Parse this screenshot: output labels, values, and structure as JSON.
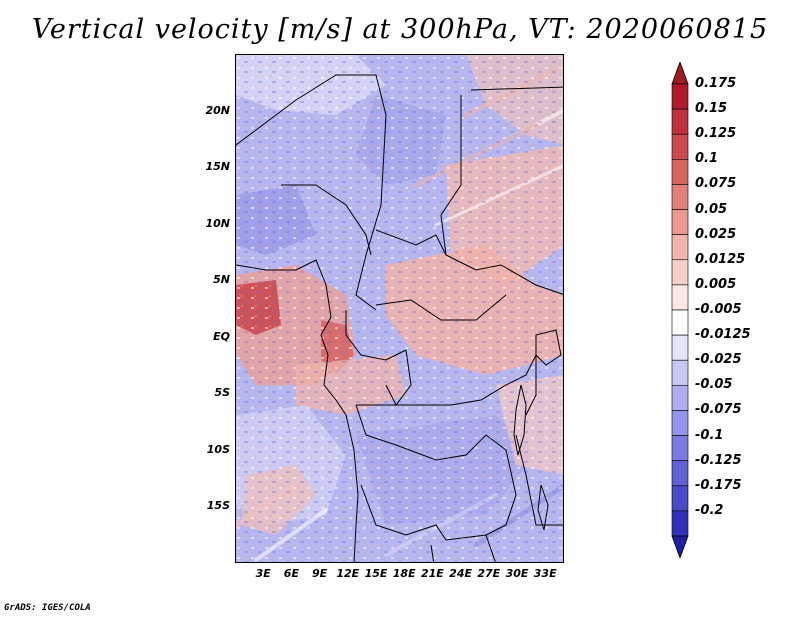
{
  "title": "Vertical velocity [m/s] at 300hPa, VT: 2020060815",
  "credit": "GrADS: IGES/COLA",
  "map": {
    "lon_range": [
      0,
      35
    ],
    "lat_range": [
      -20,
      25
    ],
    "lat_labels": [
      {
        "lat": 20,
        "text": "20N"
      },
      {
        "lat": 15,
        "text": "15N"
      },
      {
        "lat": 10,
        "text": "10N"
      },
      {
        "lat": 5,
        "text": "5N"
      },
      {
        "lat": 0,
        "text": "EQ"
      },
      {
        "lat": -5,
        "text": "5S"
      },
      {
        "lat": -10,
        "text": "10S"
      },
      {
        "lat": -15,
        "text": "15S"
      }
    ],
    "lon_labels": [
      {
        "lon": 3,
        "text": "3E"
      },
      {
        "lon": 6,
        "text": "6E"
      },
      {
        "lon": 9,
        "text": "9E"
      },
      {
        "lon": 12,
        "text": "12E"
      },
      {
        "lon": 15,
        "text": "15E"
      },
      {
        "lon": 18,
        "text": "18E"
      },
      {
        "lon": 21,
        "text": "21E"
      },
      {
        "lon": 24,
        "text": "24E"
      },
      {
        "lon": 27,
        "text": "27E"
      },
      {
        "lon": 30,
        "text": "30E"
      },
      {
        "lon": 33,
        "text": "33E"
      }
    ]
  },
  "colorbar": {
    "levels": [
      {
        "label": "0.175",
        "color": "#b2182b"
      },
      {
        "label": "0.15",
        "color": "#c0303a"
      },
      {
        "label": "0.125",
        "color": "#cc4a4d"
      },
      {
        "label": "0.1",
        "color": "#d86560"
      },
      {
        "label": "0.075",
        "color": "#e27f77"
      },
      {
        "label": "0.05",
        "color": "#eb9a92"
      },
      {
        "label": "0.025",
        "color": "#f2b5ad"
      },
      {
        "label": "0.0125",
        "color": "#f7d0ca"
      },
      {
        "label": "0.005",
        "color": "#fbe7e3"
      },
      {
        "label": "-0.005",
        "color": "#ffffff"
      },
      {
        "label": "-0.0125",
        "color": "#e4e4fb"
      },
      {
        "label": "-0.025",
        "color": "#c8c8f5"
      },
      {
        "label": "-0.05",
        "color": "#aeaef0"
      },
      {
        "label": "-0.075",
        "color": "#9494ea"
      },
      {
        "label": "-0.1",
        "color": "#7b7be2"
      },
      {
        "label": "-0.125",
        "color": "#6262d8"
      },
      {
        "label": "-0.175",
        "color": "#4a4acb"
      },
      {
        "label": "-0.2",
        "color": "#3030b8"
      }
    ],
    "top_triangle_color": "#9e1a24",
    "bottom_triangle_color": "#1e1ea0"
  }
}
